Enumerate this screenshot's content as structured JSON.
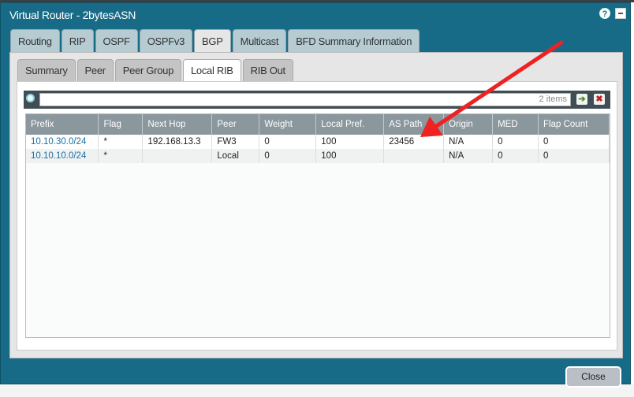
{
  "window": {
    "title": "Virtual Router - 2bytesASN",
    "help_icon": "?"
  },
  "main_tabs": [
    {
      "label": "Routing"
    },
    {
      "label": "RIP"
    },
    {
      "label": "OSPF"
    },
    {
      "label": "OSPFv3"
    },
    {
      "label": "BGP",
      "active": true
    },
    {
      "label": "Multicast"
    },
    {
      "label": "BFD Summary Information"
    }
  ],
  "sub_tabs": [
    {
      "label": "Summary"
    },
    {
      "label": "Peer"
    },
    {
      "label": "Peer Group"
    },
    {
      "label": "Local RIB",
      "active": true
    },
    {
      "label": "RIB Out"
    }
  ],
  "toolbar": {
    "search_value": "",
    "item_count": "2 items",
    "apply_icon": "➔",
    "clear_icon": "✖"
  },
  "table": {
    "columns": [
      "Prefix",
      "Flag",
      "Next Hop",
      "Peer",
      "Weight",
      "Local Pref.",
      "AS Path",
      "Origin",
      "MED",
      "Flap Count"
    ],
    "rows": [
      [
        "10.10.30.0/24",
        "*",
        "192.168.13.3",
        "FW3",
        "0",
        "100",
        "23456",
        "N/A",
        "0",
        "0"
      ],
      [
        "10.10.10.0/24",
        "*",
        "",
        "Local",
        "0",
        "100",
        "",
        "N/A",
        "0",
        "0"
      ]
    ]
  },
  "footer": {
    "close_label": "Close"
  },
  "annotation": {
    "arrow_color": "#ee2222"
  }
}
